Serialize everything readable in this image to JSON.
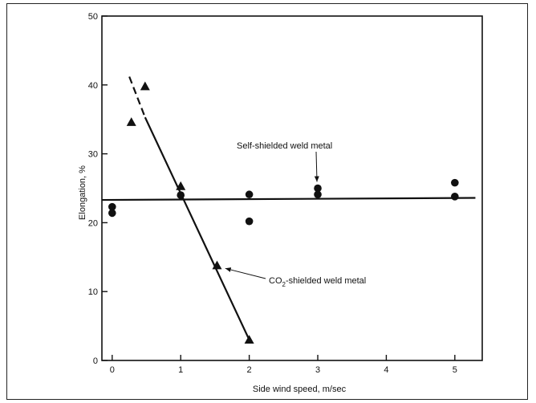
{
  "chart_data": {
    "type": "scatter",
    "xlabel": "Side wind speed, m/sec",
    "ylabel": "Elongation, %",
    "xlim": [
      -0.15,
      5.4
    ],
    "ylim": [
      0,
      50
    ],
    "x_ticks": [
      0,
      1,
      2,
      3,
      4,
      5
    ],
    "y_ticks": [
      0,
      10,
      20,
      30,
      40,
      50
    ],
    "grid": false,
    "series": [
      {
        "name": "Self-shielded weld metal",
        "marker": "circle",
        "points": [
          {
            "x": 0,
            "y": 22.3
          },
          {
            "x": 0,
            "y": 21.4
          },
          {
            "x": 1,
            "y": 24.0
          },
          {
            "x": 2,
            "y": 24.1
          },
          {
            "x": 2,
            "y": 20.2
          },
          {
            "x": 3,
            "y": 25.0
          },
          {
            "x": 3,
            "y": 24.1
          },
          {
            "x": 5,
            "y": 25.8
          },
          {
            "x": 5,
            "y": 23.8
          }
        ],
        "fit_line": {
          "x": [
            -0.15,
            5.3
          ],
          "y": [
            23.3,
            23.6
          ]
        }
      },
      {
        "name": "CO₂-shielded weld metal",
        "marker": "triangle",
        "points": [
          {
            "x": 0.28,
            "y": 34.6
          },
          {
            "x": 0.48,
            "y": 39.8
          },
          {
            "x": 1.0,
            "y": 25.3
          },
          {
            "x": 1.53,
            "y": 13.8
          },
          {
            "x": 2.0,
            "y": 3.0
          }
        ],
        "fit_line_dashed": {
          "x": [
            0.25,
            0.48
          ],
          "y": [
            41.2,
            35.3
          ]
        },
        "fit_line": {
          "x": [
            0.48,
            2.0
          ],
          "y": [
            35.3,
            3.0
          ]
        }
      }
    ],
    "annotations": [
      {
        "text": "Self-shielded weld metal",
        "points_to": {
          "x": 3.0,
          "y": 25.0
        }
      },
      {
        "text_parts": [
          "CO",
          "2",
          "-shielded weld metal"
        ],
        "points_to": {
          "x": 1.58,
          "y": 13.6
        }
      }
    ]
  }
}
